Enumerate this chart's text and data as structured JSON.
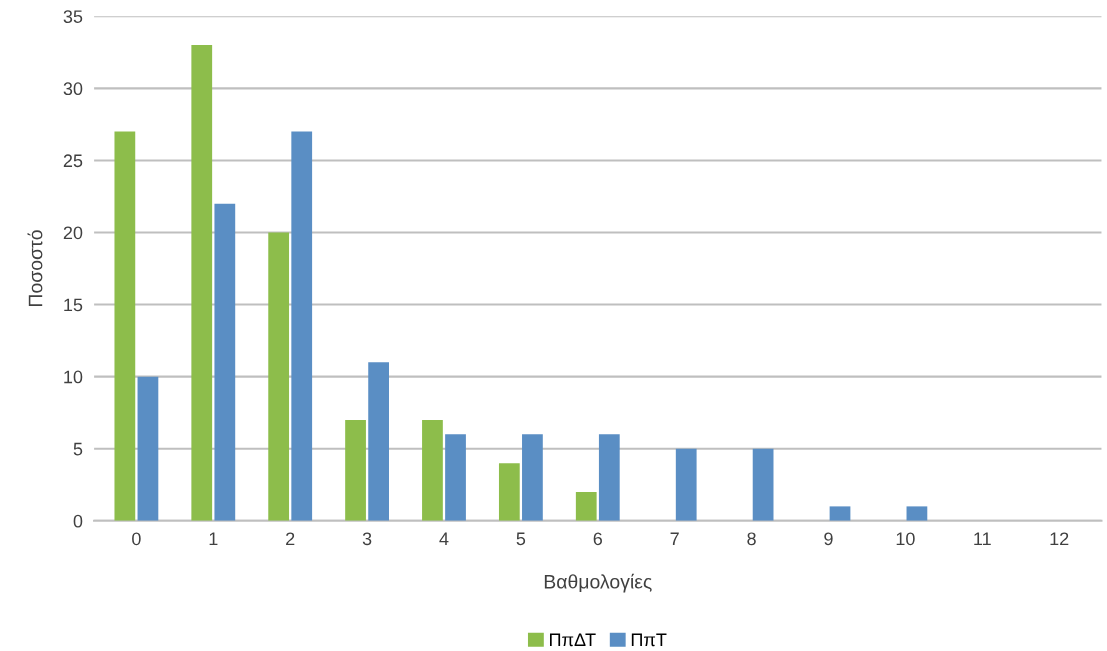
{
  "chart_data": {
    "type": "bar",
    "xlabel": "Βαθμολογίες",
    "ylabel": "Ποσοστό",
    "categories": [
      "0",
      "1",
      "2",
      "3",
      "4",
      "5",
      "6",
      "7",
      "8",
      "9",
      "10",
      "11",
      "12"
    ],
    "series": [
      {
        "name": "ΠπΔΤ",
        "color": "#8dbd4b",
        "values": [
          27,
          33,
          20,
          7,
          7,
          4,
          2,
          0,
          0,
          0,
          0,
          0,
          0
        ]
      },
      {
        "name": "ΠπΤ",
        "color": "#5a8ec4",
        "values": [
          10,
          22,
          27,
          11,
          6,
          6,
          6,
          5,
          5,
          1,
          1,
          0,
          0
        ]
      }
    ],
    "ylim": [
      0,
      35
    ],
    "yticks": [
      0,
      5,
      10,
      15,
      20,
      25,
      30,
      35
    ],
    "grid": "y",
    "legend": "bottom"
  }
}
